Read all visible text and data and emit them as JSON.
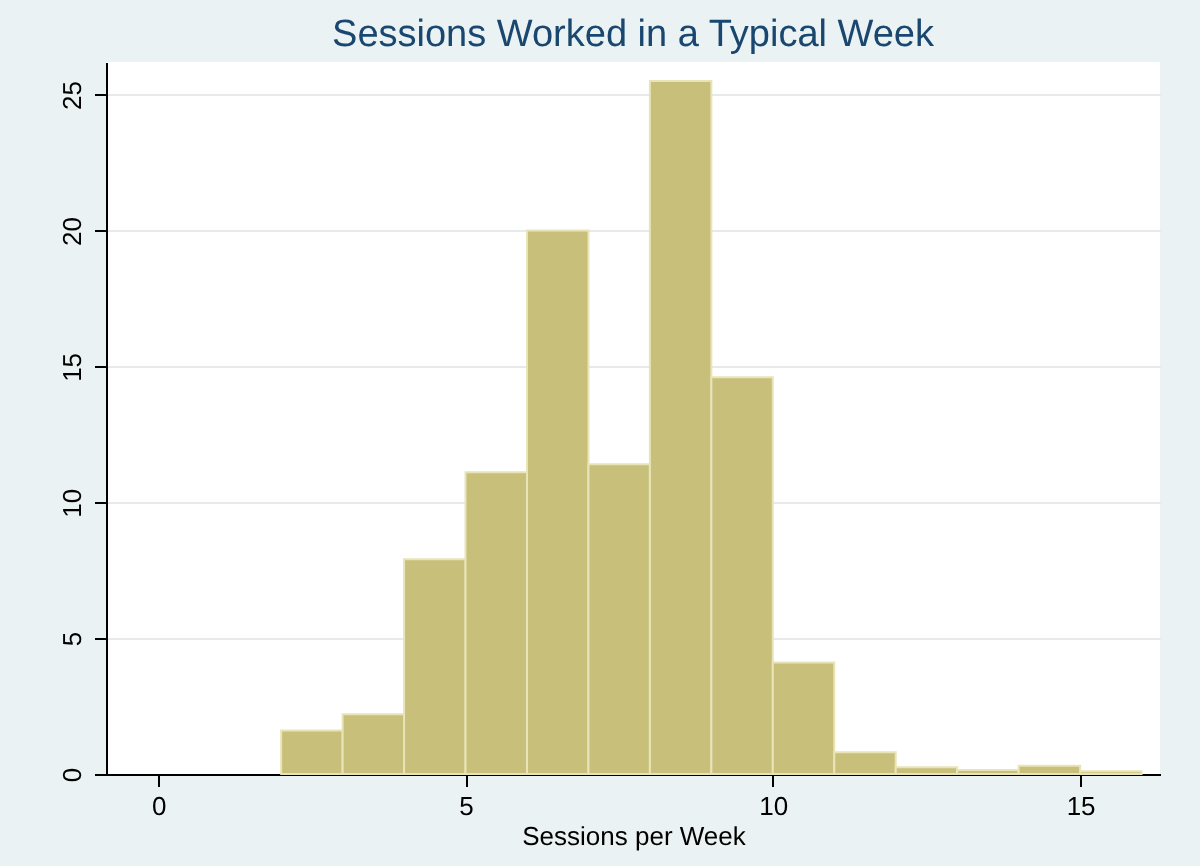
{
  "chart_data": {
    "type": "histogram",
    "title": "Sessions Worked in a Typical Week",
    "xlabel": "Sessions per Week",
    "bins": [
      2,
      3,
      4,
      5,
      6,
      7,
      8,
      9,
      10,
      11,
      12,
      13,
      14,
      15,
      16
    ],
    "values": [
      1.6,
      2.2,
      7.9,
      11.1,
      20.0,
      11.4,
      25.5,
      14.6,
      4.1,
      0.8,
      0.25,
      0.15,
      0.3,
      0.1
    ],
    "color": "#c8c07a",
    "xlim": [
      -0.85,
      16.3
    ],
    "xticks": [
      0,
      5,
      10,
      15
    ],
    "ylim": [
      0,
      26.2
    ],
    "yticks": [
      0,
      5,
      10,
      15,
      20,
      25
    ],
    "grid": "y"
  }
}
